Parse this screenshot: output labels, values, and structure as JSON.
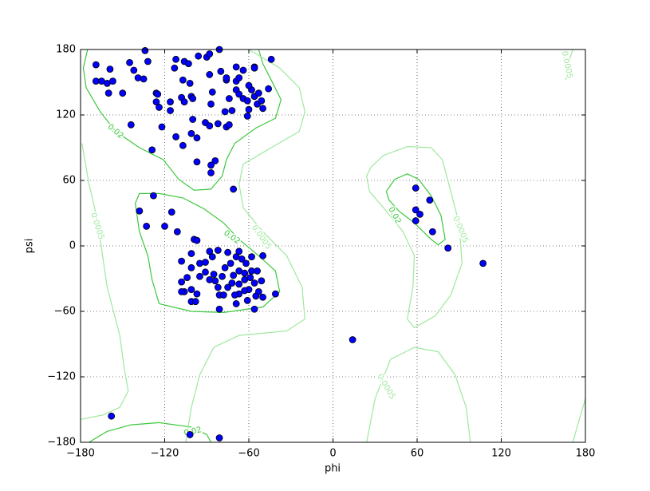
{
  "chart_data": {
    "type": "scatter",
    "xlabel": "phi",
    "ylabel": "psi",
    "xlim": [
      -180,
      180
    ],
    "ylim": [
      -180,
      180
    ],
    "xticks": [
      {
        "value": -180,
        "label": "−180"
      },
      {
        "value": -120,
        "label": "−120"
      },
      {
        "value": -60,
        "label": "−60"
      },
      0,
      60,
      120,
      180
    ],
    "yticks": [
      {
        "value": -180,
        "label": "−180"
      },
      {
        "value": -120,
        "label": "−120"
      },
      {
        "value": -60,
        "label": "−60"
      },
      0,
      60,
      120,
      180
    ],
    "grid": true,
    "color": "#0000ff",
    "x": [
      -169,
      -169,
      -165,
      -161,
      -157,
      -159,
      -145,
      -160,
      -150,
      -134,
      -132,
      -139,
      -135,
      -142,
      -144,
      -129,
      -126,
      -126,
      -124,
      -122,
      -116,
      -116,
      -113,
      -112,
      -106,
      -103,
      -107,
      -102,
      -108,
      -106,
      -101,
      -100,
      -96,
      -90,
      -88,
      -81,
      -112,
      -107,
      -101,
      -97,
      -100,
      -91,
      -88,
      -86,
      -87,
      -88,
      -80,
      -76,
      -76,
      -82,
      -76,
      -74,
      -97,
      -84,
      -87,
      -87,
      -69,
      -69,
      -69,
      -67,
      -64,
      -61,
      -56,
      -54,
      -58,
      -56,
      -60,
      -53,
      -50,
      -56,
      -61,
      -60,
      -46,
      -44,
      -74,
      -77,
      -72,
      -67,
      -64,
      -51,
      -125,
      -128,
      -138,
      -133,
      -120,
      -115,
      -111,
      -99,
      -97,
      -71,
      -108,
      -101,
      -101,
      -108,
      -104,
      -106,
      -101,
      -108,
      -101,
      -98,
      -97,
      -95,
      -95,
      -91,
      -91,
      -88,
      -86,
      -82,
      -85,
      -84,
      -82,
      -81,
      -81,
      -79,
      -77,
      -75,
      -73,
      -71,
      -69,
      -67,
      -65,
      -63,
      -62,
      -60,
      -58,
      -56,
      -54,
      -53,
      -51,
      -50,
      -69,
      -67,
      -75,
      -56,
      -41,
      -67,
      -58,
      -50,
      -63,
      -59,
      -72,
      -78,
      -61,
      -88,
      -70,
      -67,
      -55,
      -63,
      59,
      69,
      59,
      62,
      59,
      71,
      82,
      107,
      14,
      -158,
      -102,
      -81
    ],
    "y": [
      166,
      151,
      151,
      149,
      151,
      162,
      168,
      140,
      140,
      179,
      169,
      154,
      153,
      161,
      111,
      88,
      140,
      132,
      127,
      109,
      132,
      124,
      163,
      171,
      169,
      167,
      152,
      149,
      136,
      132,
      137,
      135,
      174,
      173,
      176,
      180,
      100,
      92,
      103,
      99,
      116,
      113,
      110,
      141,
      130,
      157,
      160,
      152,
      154,
      112,
      109,
      111,
      77,
      78,
      67,
      74,
      164,
      151,
      143,
      139,
      135,
      133,
      137,
      130,
      143,
      164,
      147,
      140,
      126,
      163,
      119,
      125,
      144,
      171,
      135,
      123,
      124,
      154,
      161,
      133,
      139,
      46,
      32,
      18,
      18,
      31,
      13,
      6,
      5,
      52,
      -14,
      -7,
      -20,
      -33,
      -29,
      -42,
      -40,
      -42,
      -51,
      -51,
      -44,
      -16,
      -28,
      -15,
      -24,
      -5,
      -10,
      -4,
      -26,
      -32,
      -38,
      -58,
      -45,
      -28,
      -20,
      -6,
      -16,
      -27,
      -10,
      -23,
      -12,
      -31,
      -16,
      -40,
      -23,
      -34,
      -23,
      -42,
      -32,
      -47,
      -53,
      -44,
      -38,
      -58,
      -44,
      -5,
      -10,
      -9,
      -25,
      -29,
      -34,
      -45,
      -50,
      -31,
      -45,
      -35,
      -46,
      -41,
      53,
      42,
      33,
      29,
      23,
      13,
      -2,
      -16,
      -86,
      -156,
      -173,
      -176
    ],
    "contours": [
      {
        "level": 0.02,
        "color": "#3cc83c",
        "paths": [
          {
            "x": [
              -175,
              -178,
              -176,
              -166,
              -155,
              -138,
              -121,
              -110,
              -99,
              -87,
              -79,
              -76,
              -70,
              -55,
              -41,
              -37,
              -44,
              -50,
              -53
            ],
            "y": [
              180,
              163,
              145,
              123,
              105,
              90,
              79,
              61,
              51,
              52,
              64,
              79,
              94,
              108,
              117,
              134,
              152,
              167,
              180
            ]
          },
          {
            "x": [
              -141,
              -138,
              -132,
              -129,
              -124,
              -101,
              -78,
              -50,
              -38,
              -41,
              -53,
              -67,
              -78,
              -92,
              -107,
              -124,
              -138,
              -141
            ],
            "y": [
              39,
              13,
              -9,
              -31,
              -53,
              -60,
              -61,
              -56,
              -42,
              -23,
              -9,
              6,
              21,
              34,
              44,
              48,
              48,
              39
            ]
          },
          {
            "x": [
              38,
              44,
              53,
              61,
              70,
              77,
              80,
              75,
              70,
              58,
              47,
              40,
              38
            ],
            "y": [
              50,
              61,
              66,
              61,
              46,
              28,
              6,
              1,
              6,
              21,
              32,
              42,
              50
            ]
          },
          {
            "x": [
              -174,
              -161,
              -144,
              -124,
              -101,
              -90,
              -87
            ],
            "y": [
              -180,
              -170,
              -164,
              -162,
              -166,
              -173,
              -180
            ]
          }
        ]
      },
      {
        "level": 0.0005,
        "color": "#9ee89e",
        "paths": [
          {
            "x": [
              -60,
              -38,
              -24,
              -20,
              -24,
              -44,
              -64,
              -67,
              -64,
              -50,
              -33,
              -22,
              -20,
              -33,
              -67,
              -85,
              -95,
              -101,
              -105
            ],
            "y": [
              180,
              163,
              145,
              123,
              105,
              90,
              75,
              57,
              35,
              13,
              -9,
              -38,
              -67,
              -78,
              -82,
              -93,
              -118,
              -148,
              -180
            ]
          },
          {
            "x": [
              -179,
              -174,
              -170,
              -166,
              -161,
              -152,
              -149,
              -146,
              -152,
              -164,
              -180
            ],
            "y": [
              94,
              57,
              35,
              6,
              -38,
              -82,
              -111,
              -133,
              -148,
              -155,
              -159
            ]
          },
          {
            "x": [
              27,
              36,
              53,
              70,
              78,
              84,
              90,
              92,
              84,
              73,
              58,
              53,
              57,
              58,
              50,
              36,
              26,
              24,
              27
            ],
            "y": [
              72,
              83,
              91,
              90,
              79,
              50,
              20,
              -16,
              -45,
              -64,
              -75,
              -67,
              -38,
              -9,
              13,
              35,
              50,
              64,
              72
            ]
          },
          {
            "x": [
              24,
              30,
              41,
              58,
              75,
              87,
              95,
              98
            ],
            "y": [
              -180,
              -140,
              -104,
              -93,
              -97,
              -118,
              -148,
              -180
            ]
          },
          {
            "x": [
              171,
              168,
              166
            ],
            "y": [
              180,
              168,
              152
            ]
          },
          {
            "x": [
              180,
              175,
              171
            ],
            "y": [
              -140,
              -162,
              -180
            ]
          }
        ]
      }
    ]
  }
}
